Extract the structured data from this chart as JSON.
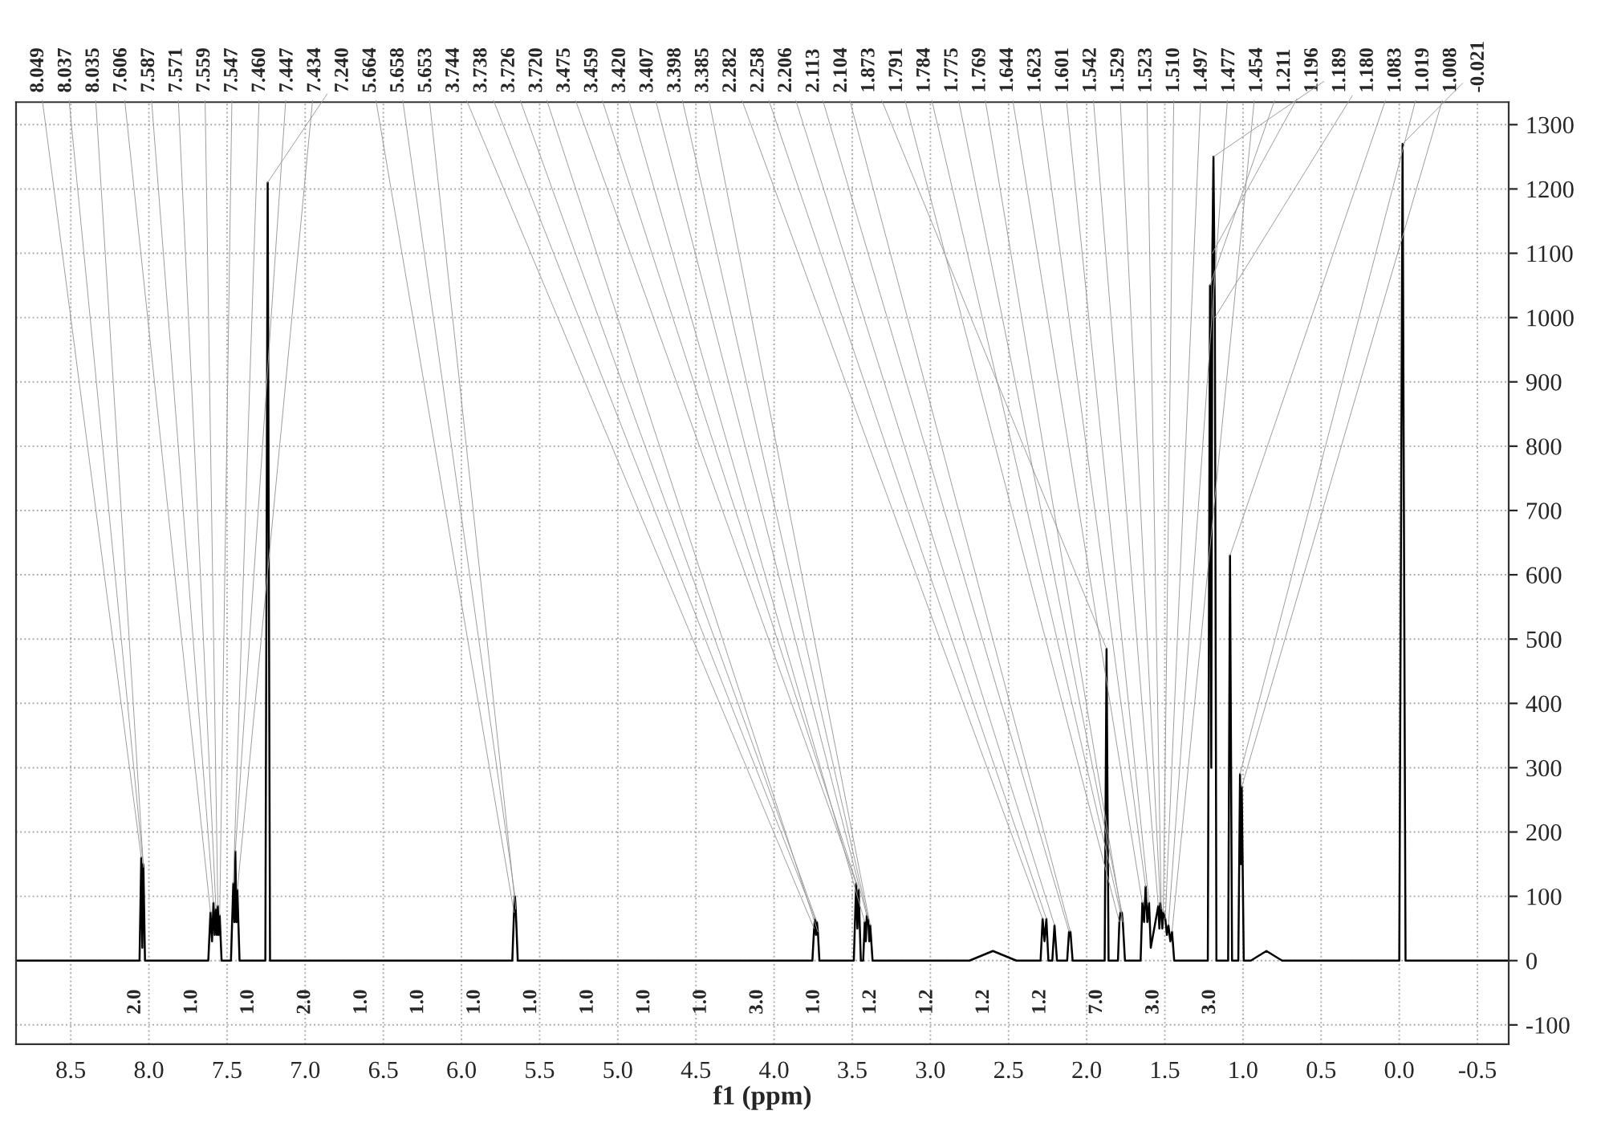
{
  "chart_data": {
    "type": "line",
    "xlabel": "f1 (ppm)",
    "x": [
      8.85,
      8.06,
      8.049,
      8.042,
      8.037,
      8.035,
      8.025,
      7.62,
      7.606,
      7.596,
      7.587,
      7.579,
      7.571,
      7.565,
      7.559,
      7.553,
      7.547,
      7.535,
      7.475,
      7.46,
      7.453,
      7.447,
      7.44,
      7.434,
      7.42,
      7.255,
      7.24,
      7.225,
      5.675,
      5.664,
      5.658,
      5.653,
      5.64,
      3.755,
      3.744,
      3.738,
      3.732,
      3.726,
      3.72,
      3.71,
      3.49,
      3.475,
      3.467,
      3.459,
      3.445,
      3.43,
      3.42,
      3.413,
      3.407,
      3.398,
      3.391,
      3.385,
      3.37,
      2.75,
      2.6,
      2.45,
      2.295,
      2.282,
      2.27,
      2.258,
      2.245,
      2.22,
      2.206,
      2.19,
      2.125,
      2.113,
      2.104,
      2.09,
      1.885,
      1.873,
      1.86,
      1.8,
      1.791,
      1.784,
      1.775,
      1.769,
      1.755,
      1.655,
      1.644,
      1.633,
      1.623,
      1.612,
      1.601,
      1.59,
      1.542,
      1.535,
      1.529,
      1.523,
      1.516,
      1.51,
      1.497,
      1.487,
      1.477,
      1.465,
      1.454,
      1.44,
      1.225,
      1.211,
      1.203,
      1.196,
      1.189,
      1.18,
      1.17,
      1.095,
      1.083,
      1.07,
      1.03,
      1.019,
      1.013,
      1.008,
      0.995,
      0.95,
      0.85,
      0.75,
      0.0,
      -0.021,
      -0.04,
      -0.7
    ],
    "series": [
      {
        "color": "#000000",
        "values": [
          0,
          0,
          160,
          20,
          150,
          145,
          0,
          0,
          75,
          30,
          90,
          40,
          80,
          40,
          85,
          40,
          70,
          0,
          0,
          120,
          60,
          170,
          60,
          110,
          0,
          0,
          1210,
          0,
          0,
          75,
          100,
          80,
          0,
          0,
          50,
          65,
          40,
          60,
          45,
          0,
          0,
          120,
          50,
          110,
          0,
          0,
          60,
          30,
          70,
          65,
          30,
          55,
          0,
          0,
          15,
          0,
          0,
          65,
          30,
          65,
          0,
          0,
          55,
          0,
          0,
          45,
          45,
          0,
          0,
          485,
          0,
          0,
          60,
          75,
          75,
          60,
          0,
          0,
          90,
          60,
          115,
          60,
          90,
          20,
          85,
          50,
          90,
          80,
          50,
          75,
          65,
          40,
          55,
          30,
          45,
          0,
          0,
          1050,
          300,
          1100,
          1250,
          1000,
          0,
          0,
          630,
          0,
          0,
          290,
          150,
          270,
          0,
          0,
          15,
          0,
          0,
          1270,
          0,
          0
        ]
      }
    ],
    "xlim": [
      8.85,
      -0.7
    ],
    "ylim": [
      -130,
      1335
    ],
    "xticks": [
      8.5,
      {
        "value": 8,
        "label": "8.0"
      },
      7.5,
      {
        "value": 7,
        "label": "7.0"
      },
      6.5,
      {
        "value": 6,
        "label": "6.0"
      },
      5.5,
      {
        "value": 5,
        "label": "5.0"
      },
      4.5,
      {
        "value": 4,
        "label": "4.0"
      },
      3.5,
      {
        "value": 3,
        "label": "3.0"
      },
      2.5,
      {
        "value": 2,
        "label": "2.0"
      },
      1.5,
      {
        "value": 1,
        "label": "1.0"
      },
      0.5,
      {
        "value": 0,
        "label": "0.0"
      },
      -0.5
    ],
    "yticks": [
      -100,
      0,
      100,
      200,
      300,
      400,
      500,
      600,
      700,
      800,
      900,
      1000,
      1100,
      1200,
      1300
    ],
    "grid": true,
    "marker": "none",
    "line_style": "solid",
    "annotations": [
      {
        "text": "8.049",
        "x": 8.049,
        "y": 160
      },
      {
        "text": "8.037",
        "x": 8.037,
        "y": 150
      },
      {
        "text": "8.035",
        "x": 8.035,
        "y": 145
      },
      {
        "text": "7.606",
        "x": 7.606,
        "y": 75
      },
      {
        "text": "7.587",
        "x": 7.587,
        "y": 90
      },
      {
        "text": "7.571",
        "x": 7.571,
        "y": 80
      },
      {
        "text": "7.559",
        "x": 7.559,
        "y": 85
      },
      {
        "text": "7.547",
        "x": 7.547,
        "y": 70
      },
      {
        "text": "7.460",
        "x": 7.46,
        "y": 120
      },
      {
        "text": "7.447",
        "x": 7.447,
        "y": 170
      },
      {
        "text": "7.434",
        "x": 7.434,
        "y": 110
      },
      {
        "text": "7.240",
        "x": 7.24,
        "y": 1210
      },
      {
        "text": "5.664",
        "x": 5.664,
        "y": 75
      },
      {
        "text": "5.658",
        "x": 5.658,
        "y": 100
      },
      {
        "text": "5.653",
        "x": 5.653,
        "y": 80
      },
      {
        "text": "3.744",
        "x": 3.744,
        "y": 50
      },
      {
        "text": "3.738",
        "x": 3.738,
        "y": 65
      },
      {
        "text": "3.726",
        "x": 3.726,
        "y": 60
      },
      {
        "text": "3.720",
        "x": 3.72,
        "y": 45
      },
      {
        "text": "3.475",
        "x": 3.475,
        "y": 120
      },
      {
        "text": "3.459",
        "x": 3.459,
        "y": 110
      },
      {
        "text": "3.420",
        "x": 3.42,
        "y": 60
      },
      {
        "text": "3.407",
        "x": 3.407,
        "y": 70
      },
      {
        "text": "3.398",
        "x": 3.398,
        "y": 65
      },
      {
        "text": "3.385",
        "x": 3.385,
        "y": 55
      },
      {
        "text": "2.282",
        "x": 2.282,
        "y": 65
      },
      {
        "text": "2.258",
        "x": 2.258,
        "y": 65
      },
      {
        "text": "2.206",
        "x": 2.206,
        "y": 55
      },
      {
        "text": "2.113",
        "x": 2.113,
        "y": 45
      },
      {
        "text": "2.104",
        "x": 2.104,
        "y": 45
      },
      {
        "text": "1.873",
        "x": 1.873,
        "y": 485
      },
      {
        "text": "1.791",
        "x": 1.791,
        "y": 60
      },
      {
        "text": "1.784",
        "x": 1.784,
        "y": 75
      },
      {
        "text": "1.775",
        "x": 1.775,
        "y": 75
      },
      {
        "text": "1.769",
        "x": 1.769,
        "y": 60
      },
      {
        "text": "1.644",
        "x": 1.644,
        "y": 90
      },
      {
        "text": "1.623",
        "x": 1.623,
        "y": 115
      },
      {
        "text": "1.601",
        "x": 1.601,
        "y": 90
      },
      {
        "text": "1.542",
        "x": 1.542,
        "y": 85
      },
      {
        "text": "1.529",
        "x": 1.529,
        "y": 90
      },
      {
        "text": "1.523",
        "x": 1.523,
        "y": 80
      },
      {
        "text": "1.510",
        "x": 1.51,
        "y": 75
      },
      {
        "text": "1.497",
        "x": 1.497,
        "y": 65
      },
      {
        "text": "1.477",
        "x": 1.477,
        "y": 55
      },
      {
        "text": "1.454",
        "x": 1.454,
        "y": 45
      },
      {
        "text": "1.211",
        "x": 1.211,
        "y": 1050
      },
      {
        "text": "1.196",
        "x": 1.196,
        "y": 1100
      },
      {
        "text": "1.189",
        "x": 1.189,
        "y": 1250
      },
      {
        "text": "1.180",
        "x": 1.18,
        "y": 1000
      },
      {
        "text": "1.083",
        "x": 1.083,
        "y": 630
      },
      {
        "text": "1.019",
        "x": 1.019,
        "y": 290
      },
      {
        "text": "1.008",
        "x": 1.008,
        "y": 270
      },
      {
        "text": "-0.021",
        "x": -0.021,
        "y": 1270
      },
      "2.0",
      "1.0",
      "1.0",
      "2.0",
      "1.0",
      "1.0",
      "1.0",
      "1.0",
      "1.0",
      "1.0",
      "1.0",
      "3.0",
      "1.0",
      "1.2",
      "1.2",
      "1.2",
      "1.2",
      "7.0",
      "3.0",
      "3.0"
    ]
  }
}
